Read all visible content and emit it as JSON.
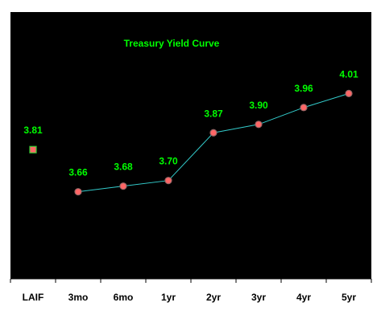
{
  "chart_data": {
    "type": "line",
    "title": "Treasury Yield Curve",
    "categories": [
      "LAIF",
      "3mo",
      "6mo",
      "1yr",
      "2yr",
      "3yr",
      "4yr",
      "5yr"
    ],
    "series": [
      {
        "values": [
          null,
          3.66,
          3.68,
          3.7,
          3.87,
          3.9,
          3.96,
          4.01
        ],
        "value_labels": [
          "",
          "3.66",
          "3.68",
          "3.70",
          "3.87",
          "3.90",
          "3.96",
          "4.01"
        ],
        "line_color": "#33cccc",
        "marker": "circle",
        "marker_fill": "#ff6666",
        "marker_stroke": "#996666"
      },
      {
        "values": [
          3.81,
          null,
          null,
          null,
          null,
          null,
          null,
          null
        ],
        "value_labels": [
          "3.81",
          "",
          "",
          "",
          "",
          "",
          "",
          ""
        ],
        "marker": "square",
        "marker_fill": "#ff6666",
        "marker_stroke": "#33cc33"
      }
    ],
    "ylim": [
      3.35,
      4.3
    ],
    "grid": false,
    "legend": "none",
    "colors": {
      "plot_background": "#000000",
      "page_background": "#ffffff",
      "title_color": "#00ff00",
      "value_label_color": "#00ff00",
      "axis_color": "#000000",
      "tick_label_color": "#000000"
    }
  }
}
